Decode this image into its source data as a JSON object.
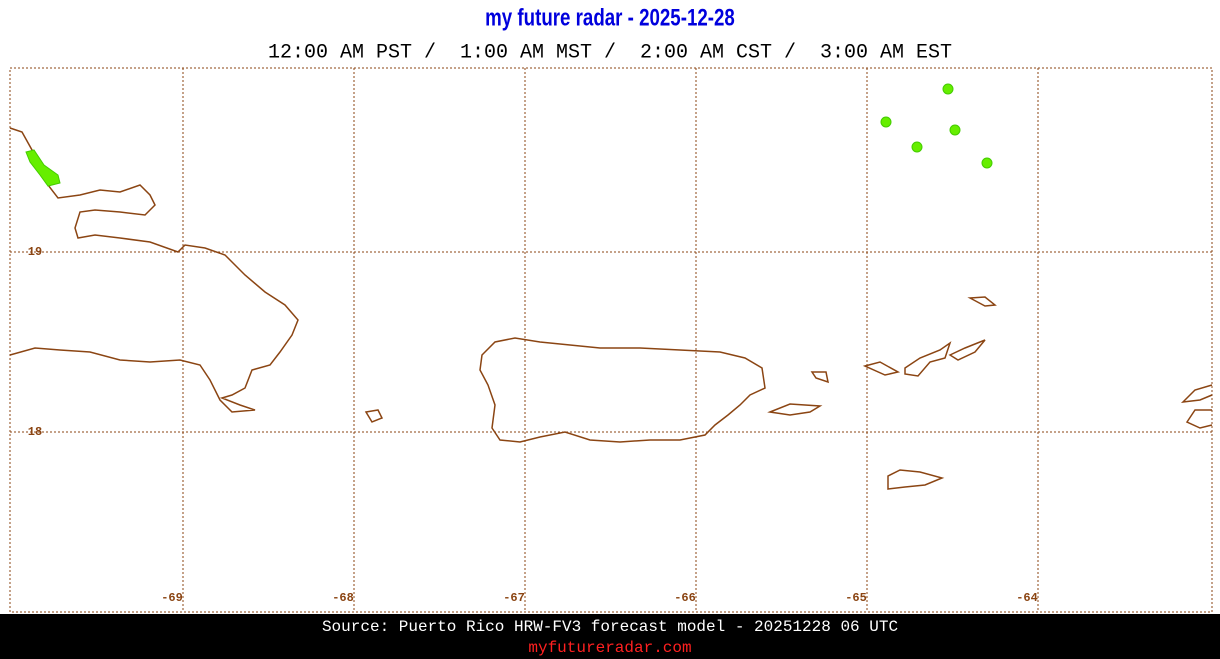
{
  "header": {
    "title": "my future radar - 2025-12-28",
    "times": "12:00 AM PST /  1:00 AM MST /  2:00 AM CST /  3:00 AM EST"
  },
  "map": {
    "lon_labels": [
      "-69",
      "-68",
      "-67",
      "-66",
      "-65",
      "-64"
    ],
    "lat_labels": [
      "19",
      "18"
    ]
  },
  "footer": {
    "source": "Source: Puerto Rico HRW-FV3 forecast model - 20251228 06 UTC",
    "site": "myfutureradar.com"
  }
}
